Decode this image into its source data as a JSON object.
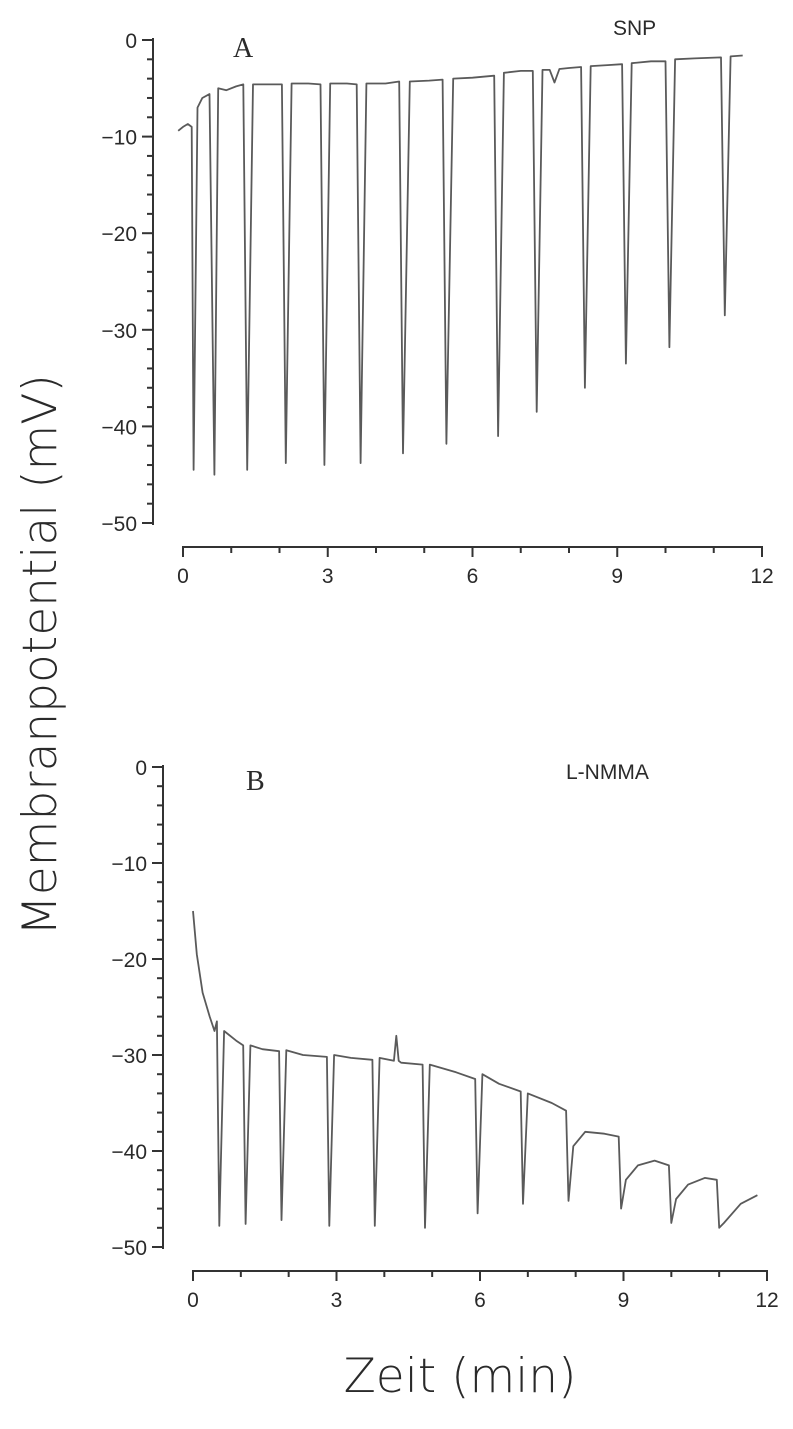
{
  "figure": {
    "ylabel": "Membranpotential   (mV)",
    "xlabel": "Zeit    (min)"
  },
  "chart_data": [
    {
      "type": "line",
      "panel": "A",
      "title": "SNP",
      "xlim": [
        0,
        12
      ],
      "ylim": [
        -50,
        0
      ],
      "xticks": [
        0,
        3,
        6,
        9,
        12
      ],
      "yticks": [
        0,
        -10,
        -20,
        -30,
        -40,
        -50
      ],
      "xtick_labels": [
        "0",
        "3",
        "6",
        "9",
        "12"
      ],
      "ytick_labels": [
        "0",
        "−10",
        "−20",
        "−30",
        "−40",
        "−50"
      ],
      "color": "#5a5a5a",
      "series": [
        {
          "x": [
            -0.1,
            0.0,
            0.1,
            0.18,
            0.22,
            0.3,
            0.4,
            0.55,
            0.65,
            0.73,
            0.9,
            1.1,
            1.25,
            1.33,
            1.45,
            1.8,
            2.05,
            2.13,
            2.25,
            2.6,
            2.85,
            2.93,
            3.05,
            3.4,
            3.6,
            3.68,
            3.8,
            4.2,
            4.48,
            4.56,
            4.7,
            5.1,
            5.38,
            5.46,
            5.6,
            6.0,
            6.45,
            6.53,
            6.65,
            7.0,
            7.25,
            7.33,
            7.45,
            7.6,
            7.7,
            7.8,
            8.0,
            8.25,
            8.33,
            8.45,
            8.8,
            9.1,
            9.18,
            9.3,
            9.7,
            10.0,
            10.08,
            10.2,
            10.6,
            11.15,
            11.23,
            11.35,
            11.6
          ],
          "y": [
            -9.4,
            -9.0,
            -8.7,
            -9.0,
            -44.5,
            -7.0,
            -6.0,
            -5.6,
            -45.0,
            -5.0,
            -5.2,
            -4.8,
            -4.6,
            -44.5,
            -4.6,
            -4.6,
            -4.6,
            -43.8,
            -4.5,
            -4.5,
            -4.6,
            -44.0,
            -4.5,
            -4.5,
            -4.6,
            -43.8,
            -4.5,
            -4.5,
            -4.3,
            -42.8,
            -4.3,
            -4.2,
            -4.1,
            -41.8,
            -4.0,
            -3.9,
            -3.7,
            -41.0,
            -3.4,
            -3.2,
            -3.2,
            -38.5,
            -3.1,
            -3.1,
            -4.4,
            -3.0,
            -2.9,
            -2.8,
            -36.0,
            -2.7,
            -2.6,
            -2.5,
            -33.5,
            -2.4,
            -2.2,
            -2.2,
            -31.8,
            -2.0,
            -1.9,
            -1.8,
            -28.5,
            -1.7,
            -1.6
          ]
        }
      ]
    },
    {
      "type": "line",
      "panel": "B",
      "title": "L-NMMA",
      "xlim": [
        0,
        12
      ],
      "ylim": [
        -50,
        0
      ],
      "xticks": [
        0,
        3,
        6,
        9,
        12
      ],
      "yticks": [
        0,
        -10,
        -20,
        -30,
        -40,
        -50
      ],
      "xtick_labels": [
        "0",
        "3",
        "6",
        "9",
        "12"
      ],
      "ytick_labels": [
        "0",
        "−10",
        "−20",
        "−30",
        "−40",
        "−50"
      ],
      "color": "#5a5a5a",
      "series": [
        {
          "x": [
            0.0,
            0.08,
            0.2,
            0.35,
            0.45,
            0.5,
            0.55,
            0.65,
            0.9,
            1.05,
            1.1,
            1.2,
            1.45,
            1.8,
            1.85,
            1.95,
            2.3,
            2.8,
            2.85,
            2.95,
            3.3,
            3.75,
            3.8,
            3.9,
            4.2,
            4.25,
            4.3,
            4.35,
            4.8,
            4.85,
            4.95,
            5.5,
            5.9,
            5.95,
            6.05,
            6.4,
            6.85,
            6.9,
            7.0,
            7.5,
            7.8,
            7.85,
            7.95,
            8.2,
            8.6,
            8.9,
            8.95,
            9.05,
            9.3,
            9.65,
            9.95,
            10.0,
            10.1,
            10.35,
            10.7,
            10.95,
            11.0,
            11.1,
            11.45,
            11.8
          ],
          "y": [
            -15.0,
            -19.5,
            -23.5,
            -26.0,
            -27.5,
            -26.5,
            -47.8,
            -27.5,
            -28.5,
            -29.0,
            -47.6,
            -29.0,
            -29.4,
            -29.6,
            -47.2,
            -29.5,
            -30.0,
            -30.2,
            -47.8,
            -30.0,
            -30.3,
            -30.5,
            -47.8,
            -30.3,
            -30.6,
            -28.0,
            -30.6,
            -30.8,
            -31.0,
            -48.0,
            -31.0,
            -31.8,
            -32.5,
            -46.5,
            -32.0,
            -33.0,
            -33.8,
            -45.5,
            -34.0,
            -35.0,
            -35.8,
            -45.2,
            -39.5,
            -38.0,
            -38.2,
            -38.5,
            -46.0,
            -43.0,
            -41.5,
            -41.0,
            -41.5,
            -47.5,
            -45.0,
            -43.5,
            -42.8,
            -43.0,
            -48.0,
            -47.5,
            -45.5,
            -44.6
          ]
        }
      ]
    }
  ]
}
